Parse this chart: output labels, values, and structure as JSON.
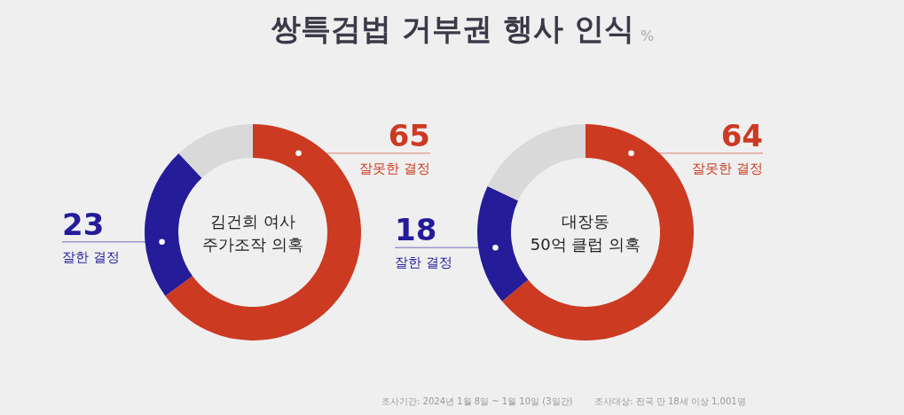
{
  "chart_data": [
    {
      "type": "donut",
      "title": "쌍특검법 거부권 행사 인식",
      "subtitle": "김건희 여사\n주가조작 의혹",
      "categories": [
        "잘못한 결정",
        "잘한 결정",
        null
      ],
      "values": [
        65,
        23,
        12
      ],
      "colors": [
        "#cc3a22",
        "#241c99",
        "#d9d9d9"
      ],
      "value_labels": [
        "65",
        "23",
        null
      ],
      "annotations": [
        "%",
        "조사기간: 2024년 1월 8일 ~ 1월 10일 (3일간)",
        "조사대상: 전국 만 18세 이상 1,001명"
      ]
    },
    {
      "type": "donut",
      "subtitle": "대장동\n50억 클럽 의혹",
      "categories": [
        "잘못한 결정",
        "잘한 결정",
        null
      ],
      "values": [
        64,
        18,
        18
      ],
      "colors": [
        "#cc3a22",
        "#241c99",
        "#d9d9d9"
      ],
      "value_labels": [
        "64",
        "18",
        null
      ]
    }
  ]
}
